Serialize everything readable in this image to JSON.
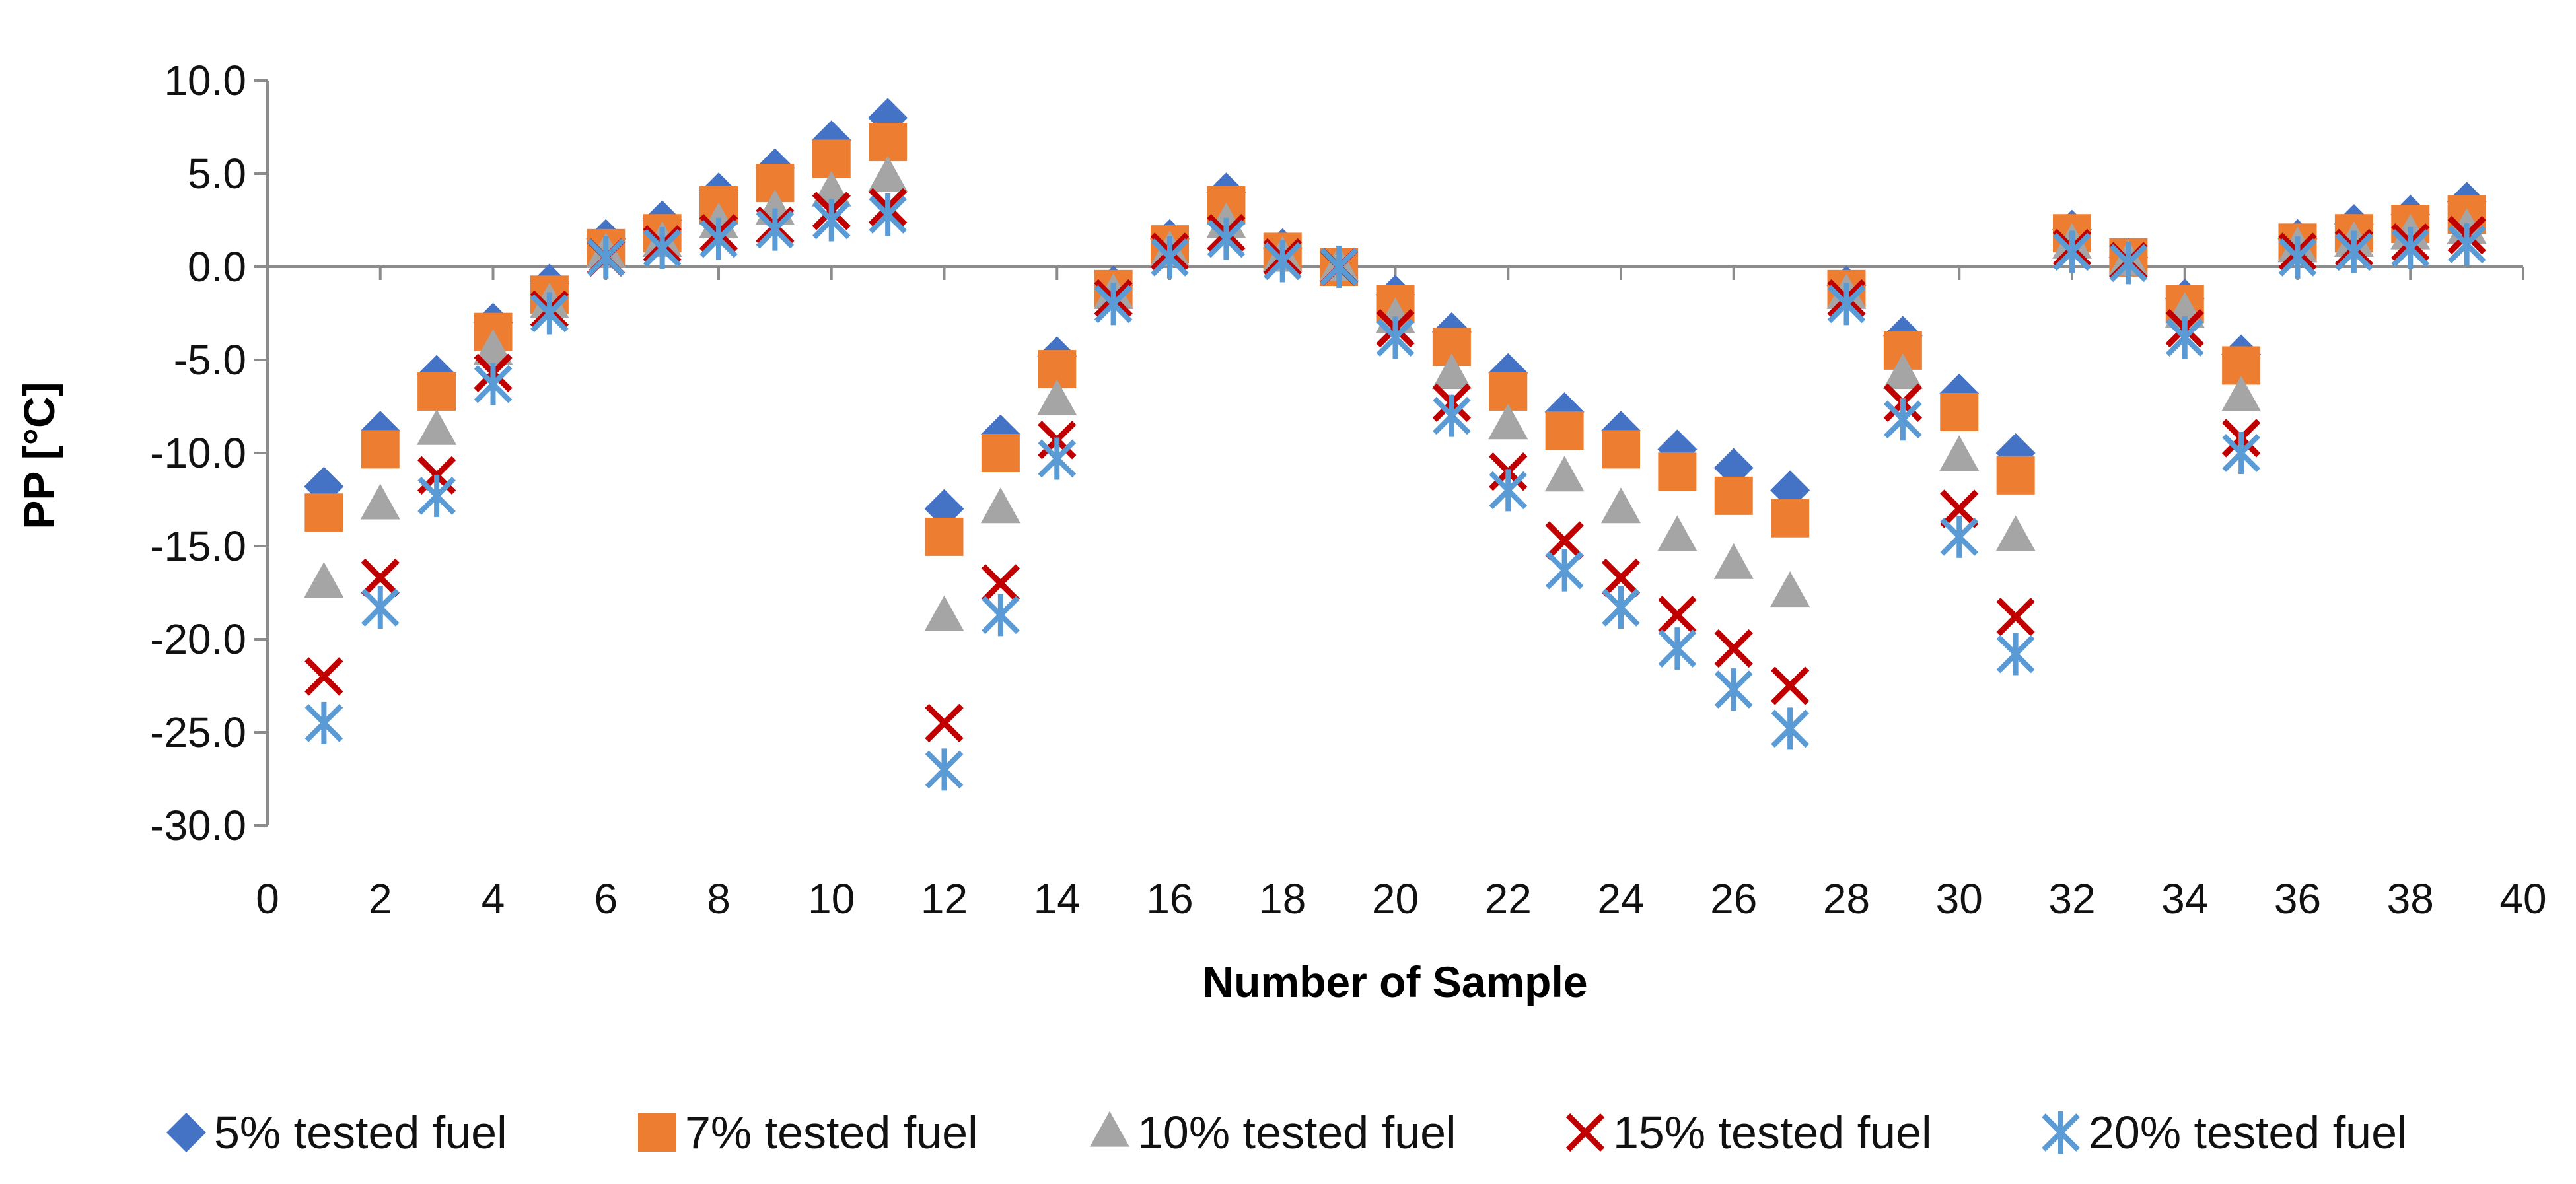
{
  "chart_data": {
    "type": "scatter",
    "title": "",
    "xlabel": "Number of Sample",
    "ylabel": "PP [°C]",
    "xlim": [
      0,
      40
    ],
    "ylim": [
      -30,
      10
    ],
    "xticks": [
      0,
      2,
      4,
      6,
      8,
      10,
      12,
      14,
      16,
      18,
      20,
      22,
      24,
      26,
      28,
      30,
      32,
      34,
      36,
      38,
      40
    ],
    "yticks": [
      10,
      5,
      0,
      -5,
      -10,
      -15,
      -20,
      -25,
      -30
    ],
    "xtick_labels": [
      "0",
      "2",
      "4",
      "6",
      "8",
      "10",
      "12",
      "14",
      "16",
      "18",
      "20",
      "22",
      "24",
      "26",
      "28",
      "30",
      "32",
      "34",
      "36",
      "38",
      "40"
    ],
    "ytick_labels": [
      "10.0",
      "5.0",
      "0.0",
      "-5.0",
      "-10.0",
      "-15.0",
      "-20.0",
      "-25.0",
      "-30.0"
    ],
    "legend_position": "bottom",
    "x": [
      1,
      2,
      3,
      4,
      5,
      6,
      7,
      8,
      9,
      10,
      11,
      12,
      13,
      14,
      15,
      16,
      17,
      18,
      19,
      20,
      21,
      22,
      23,
      24,
      25,
      26,
      27,
      28,
      29,
      30,
      31,
      32,
      33,
      34,
      35,
      36,
      37,
      38,
      39
    ],
    "series": [
      {
        "name": "5% tested fuel",
        "marker": "diamond",
        "color": "#4472C4",
        "values": [
          -11.8,
          -8.8,
          -5.8,
          -3.0,
          -0.9,
          1.5,
          2.5,
          4.0,
          5.3,
          6.8,
          8.0,
          -13.0,
          -9.0,
          -4.8,
          -1.0,
          1.5,
          4.0,
          1.0,
          0.0,
          -1.5,
          -3.5,
          -5.7,
          -7.8,
          -8.8,
          -9.8,
          -10.8,
          -12.0,
          -1.0,
          -3.7,
          -6.8,
          -10.0,
          2.0,
          0.5,
          -1.7,
          -4.7,
          1.5,
          2.3,
          2.8,
          3.5
        ]
      },
      {
        "name": "7% tested fuel",
        "marker": "square",
        "color": "#ED7D31",
        "values": [
          -13.2,
          -9.8,
          -6.7,
          -3.5,
          -1.5,
          1.0,
          1.8,
          3.3,
          4.5,
          5.8,
          6.7,
          -14.5,
          -10.0,
          -5.5,
          -1.2,
          1.2,
          3.3,
          0.8,
          0.0,
          -2.0,
          -4.3,
          -6.7,
          -8.8,
          -9.8,
          -11.0,
          -12.3,
          -13.5,
          -1.2,
          -4.5,
          -7.8,
          -11.2,
          1.8,
          0.5,
          -2.0,
          -5.3,
          1.3,
          1.8,
          2.3,
          2.8
        ]
      },
      {
        "name": "10% tested fuel",
        "marker": "triangle",
        "color": "#A5A5A5",
        "values": [
          -17.0,
          -12.8,
          -8.8,
          -4.5,
          -2.0,
          0.7,
          1.3,
          2.3,
          3.0,
          4.0,
          4.8,
          -18.8,
          -13.0,
          -7.2,
          -1.5,
          0.8,
          2.3,
          0.5,
          0.0,
          -2.8,
          -5.8,
          -8.5,
          -11.3,
          -13.0,
          -14.5,
          -16.0,
          -17.5,
          -1.5,
          -5.8,
          -10.2,
          -14.5,
          1.2,
          0.3,
          -2.5,
          -7.0,
          1.0,
          1.3,
          1.7,
          2.0
        ]
      },
      {
        "name": "15% tested fuel",
        "marker": "x",
        "color": "#C00000",
        "values": [
          -22.0,
          -16.7,
          -11.2,
          -5.7,
          -2.3,
          0.5,
          1.2,
          1.8,
          2.2,
          3.0,
          3.2,
          -24.5,
          -17.0,
          -9.3,
          -1.7,
          0.8,
          1.8,
          0.5,
          0.0,
          -3.3,
          -7.3,
          -11.0,
          -14.7,
          -16.7,
          -18.7,
          -20.5,
          -22.5,
          -1.7,
          -7.3,
          -13.0,
          -18.8,
          1.0,
          0.3,
          -3.3,
          -9.2,
          0.8,
          1.0,
          1.3,
          1.7
        ]
      },
      {
        "name": "20% tested fuel",
        "marker": "asterisk",
        "color": "#5B9BD5",
        "values": [
          -24.5,
          -18.3,
          -12.3,
          -6.3,
          -2.5,
          0.5,
          1.0,
          1.5,
          2.0,
          2.5,
          2.8,
          -27.0,
          -18.7,
          -10.3,
          -2.0,
          0.5,
          1.5,
          0.3,
          0.0,
          -3.8,
          -8.0,
          -12.0,
          -16.3,
          -18.3,
          -20.5,
          -22.7,
          -24.8,
          -2.0,
          -8.2,
          -14.5,
          -20.8,
          0.8,
          0.2,
          -3.8,
          -10.0,
          0.5,
          0.8,
          1.0,
          1.2
        ]
      }
    ]
  }
}
